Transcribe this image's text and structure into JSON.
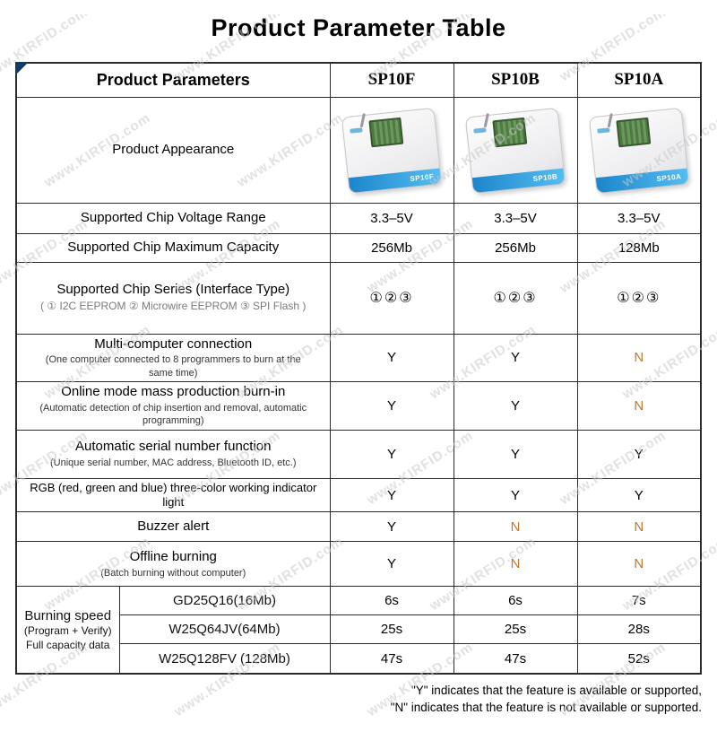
{
  "title": "Product Parameter Table",
  "watermark": "www.KIRFID.com",
  "header": {
    "param": "Product Parameters",
    "cols": [
      "SP10F",
      "SP10B",
      "SP10A"
    ]
  },
  "appearance": {
    "label": "Product Appearance",
    "devices": [
      "SP10F",
      "SP10B",
      "SP10A"
    ]
  },
  "rows": [
    {
      "label": "Supported Chip Voltage Range",
      "values": [
        "3.3–5V",
        "3.3–5V",
        "3.3–5V"
      ]
    },
    {
      "label": "Supported Chip Maximum Capacity",
      "values": [
        "256Mb",
        "256Mb",
        "128Mb"
      ]
    },
    {
      "label": "Supported Chip Series (Interface Type)",
      "sub": "( ① I2C EEPROM ② Microwire EEPROM ③ SPI Flash )",
      "values": [
        "①②③",
        "①②③",
        "①②③"
      ]
    },
    {
      "label": "Multi-computer connection",
      "sub": "(One computer connected to 8 programmers to burn at the same time)",
      "values": [
        "Y",
        "Y",
        "N"
      ]
    },
    {
      "label": "Online mode mass production burn-in",
      "sub": "(Automatic detection of chip insertion and removal, automatic programming)",
      "values": [
        "Y",
        "Y",
        "N"
      ]
    },
    {
      "label": "Automatic serial number function",
      "sub": "(Unique serial number, MAC address, Bluetooth ID, etc.)",
      "values": [
        "Y",
        "Y",
        "Y"
      ]
    },
    {
      "label": "RGB (red, green and blue) three-color working indicator light",
      "values": [
        "Y",
        "Y",
        "Y"
      ]
    },
    {
      "label": "Buzzer alert",
      "values": [
        "Y",
        "N",
        "N"
      ]
    },
    {
      "label": "Offline burning",
      "sub": "(Batch burning without computer)",
      "values": [
        "Y",
        "N",
        "N"
      ]
    }
  ],
  "burning": {
    "line1": "Burning speed",
    "line2": "(Program + Verify)",
    "line3": "Full capacity data",
    "rows": [
      {
        "chip": "GD25Q16(16Mb)",
        "values": [
          "6s",
          "6s",
          "7s"
        ]
      },
      {
        "chip": "W25Q64JV(64Mb)",
        "values": [
          "25s",
          "25s",
          "28s"
        ]
      },
      {
        "chip": "W25Q128FV (128Mb)",
        "values": [
          "47s",
          "47s",
          "52s"
        ]
      }
    ]
  },
  "footnotes": {
    "line1": "\"Y\" indicates that the feature is available or supported,",
    "line2": "\"N\" indicates that the feature is not available or supported."
  },
  "colors": {
    "n_color": "#c0792c",
    "header_blue": "#569ad6"
  }
}
